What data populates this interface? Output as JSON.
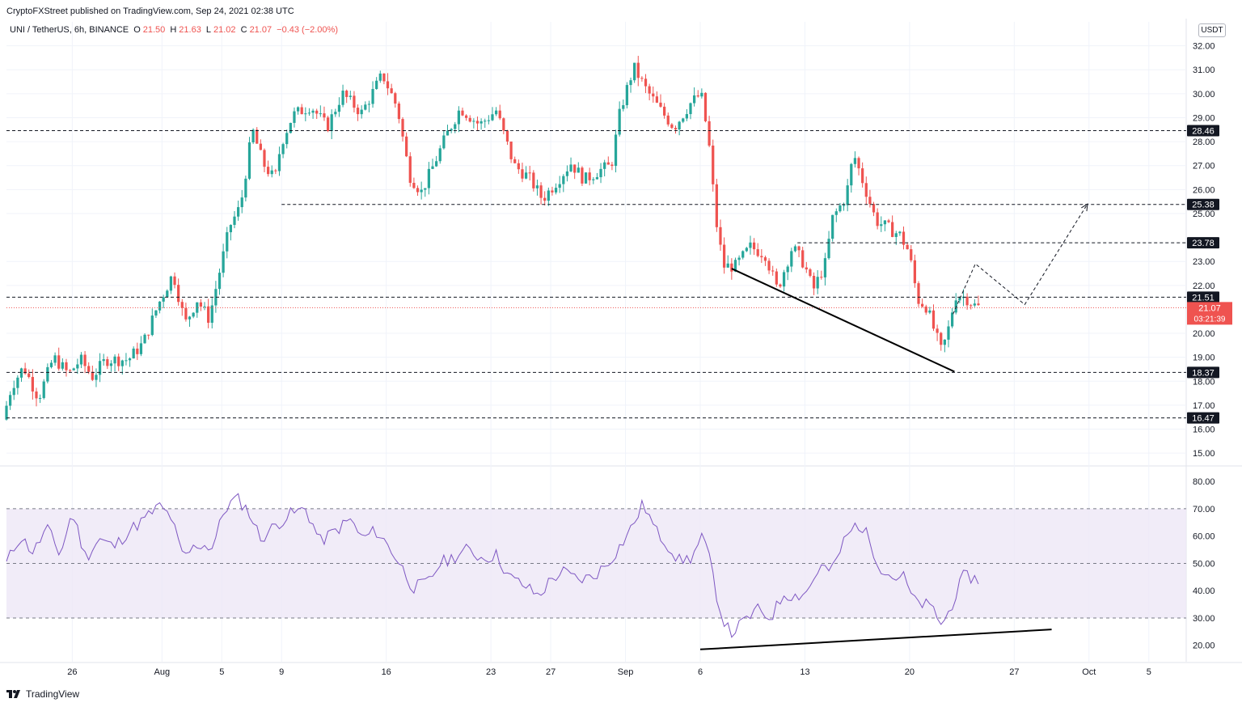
{
  "header": {
    "publisher_line": "CryptoFXStreet published on TradingView.com, Sep 24, 2021 02:38 UTC",
    "symbol": "UNI / TetherUS, 6h, BINANCE",
    "ohlc": {
      "o_label": "O",
      "o": "21.50",
      "h_label": "H",
      "h": "21.63",
      "l_label": "L",
      "l": "21.02",
      "c_label": "C",
      "c": "21.07",
      "change": "−0.43 (−2.00%)"
    },
    "currency": "USDT"
  },
  "footer": {
    "brand": "TradingView"
  },
  "colors": {
    "up": "#26a69a",
    "down": "#ef5350",
    "rsi": "#7e57c2",
    "rsi_band": "#ede7f6",
    "level_badge": "#131722",
    "last_price": "#ef5350"
  },
  "chart_data": [
    {
      "type": "candlestick",
      "timeframe": "6h",
      "x_ticks": [
        "26",
        "Aug",
        "5",
        "9",
        "16",
        "23",
        "27",
        "Sep",
        "6",
        "13",
        "20",
        "27",
        "Oct",
        "5"
      ],
      "x_tick_days": [
        26,
        32,
        36,
        40,
        47,
        54,
        58,
        63,
        68,
        75,
        82,
        89,
        94,
        98
      ],
      "x_range": [
        21.6,
        100.5
      ],
      "y_ticks": [
        "15.00",
        "16.00",
        "17.00",
        "18.00",
        "19.00",
        "20.00",
        "22.00",
        "23.00",
        "25.00",
        "26.00",
        "27.00",
        "28.00",
        "29.00",
        "30.00",
        "31.00",
        "32.00"
      ],
      "y_range": [
        14.6,
        33.0
      ],
      "key_levels": [
        {
          "label": "28.46",
          "value": 28.46,
          "from_day": 21.6
        },
        {
          "label": "25.38",
          "value": 25.38,
          "from_day": 40.0
        },
        {
          "label": "23.78",
          "value": 23.78,
          "from_day": 74.5
        },
        {
          "label": "21.51",
          "value": 21.51,
          "from_day": 21.6
        },
        {
          "label": "18.37",
          "value": 18.37,
          "from_day": 21.6
        },
        {
          "label": "16.47",
          "value": 16.47,
          "from_day": 21.6
        }
      ],
      "last_price": {
        "value": 21.07,
        "label": "21.07",
        "countdown": "03:21:39"
      },
      "trendline": [
        [
          70.1,
          22.7
        ],
        [
          85.0,
          18.4
        ]
      ],
      "projection": [
        [
          84.9,
          20.8
        ],
        [
          86.4,
          22.9
        ],
        [
          89.7,
          21.2
        ],
        [
          93.9,
          25.4
        ]
      ],
      "price_waypoints": [
        [
          21.6,
          16.4
        ],
        [
          22.2,
          17.8
        ],
        [
          23.0,
          18.6
        ],
        [
          24.0,
          17.3
        ],
        [
          25.0,
          19.0
        ],
        [
          26.0,
          18.3
        ],
        [
          26.8,
          18.9
        ],
        [
          27.6,
          18.2
        ],
        [
          28.5,
          18.9
        ],
        [
          30.0,
          18.9
        ],
        [
          31.0,
          19.6
        ],
        [
          32.0,
          21.2
        ],
        [
          33.0,
          22.5
        ],
        [
          33.8,
          20.4
        ],
        [
          34.6,
          21.4
        ],
        [
          35.4,
          20.6
        ],
        [
          36.0,
          22.3
        ],
        [
          36.8,
          24.5
        ],
        [
          37.5,
          25.3
        ],
        [
          38.3,
          28.5
        ],
        [
          39.0,
          27.1
        ],
        [
          39.8,
          26.4
        ],
        [
          40.2,
          27.9
        ],
        [
          41.0,
          29.1
        ],
        [
          42.2,
          29.5
        ],
        [
          43.3,
          28.6
        ],
        [
          44.3,
          30.0
        ],
        [
          45.6,
          29.2
        ],
        [
          47.0,
          30.8
        ],
        [
          48.0,
          29.4
        ],
        [
          48.8,
          26.6
        ],
        [
          49.6,
          25.9
        ],
        [
          50.4,
          27.0
        ],
        [
          51.3,
          28.3
        ],
        [
          52.2,
          29.4
        ],
        [
          53.5,
          28.7
        ],
        [
          54.6,
          29.3
        ],
        [
          55.8,
          27.0
        ],
        [
          56.8,
          26.5
        ],
        [
          57.7,
          25.6
        ],
        [
          58.6,
          26.3
        ],
        [
          59.6,
          27.1
        ],
        [
          60.5,
          26.4
        ],
        [
          61.5,
          26.8
        ],
        [
          62.3,
          27.0
        ],
        [
          62.9,
          29.3
        ],
        [
          63.8,
          31.1
        ],
        [
          64.6,
          30.2
        ],
        [
          65.6,
          29.3
        ],
        [
          66.5,
          28.6
        ],
        [
          67.6,
          29.6
        ],
        [
          68.3,
          30.0
        ],
        [
          68.8,
          28.1
        ],
        [
          69.3,
          24.7
        ],
        [
          69.8,
          22.8
        ],
        [
          70.6,
          22.8
        ],
        [
          71.6,
          23.6
        ],
        [
          72.6,
          23.3
        ],
        [
          73.4,
          21.8
        ],
        [
          74.4,
          23.6
        ],
        [
          75.2,
          22.9
        ],
        [
          75.8,
          21.8
        ],
        [
          76.6,
          22.9
        ],
        [
          77.1,
          24.8
        ],
        [
          78.0,
          25.7
        ],
        [
          78.5,
          27.5
        ],
        [
          79.2,
          26.2
        ],
        [
          80.0,
          24.7
        ],
        [
          80.8,
          24.4
        ],
        [
          81.6,
          24.1
        ],
        [
          82.2,
          23.4
        ],
        [
          82.8,
          21.4
        ],
        [
          83.4,
          21.1
        ],
        [
          83.8,
          20.3
        ],
        [
          84.4,
          19.2
        ],
        [
          84.9,
          20.3
        ],
        [
          85.3,
          21.6
        ],
        [
          86.0,
          21.5
        ],
        [
          86.7,
          21.1
        ]
      ]
    },
    {
      "type": "line",
      "indicator": "RSI",
      "y_ticks": [
        "20.00",
        "30.00",
        "40.00",
        "50.00",
        "60.00",
        "70.00",
        "80.00"
      ],
      "y_range": [
        14.0,
        83.6
      ],
      "band": [
        30,
        70
      ],
      "midline": 50,
      "trendline": [
        [
          68.0,
          18.5
        ],
        [
          91.5,
          25.8
        ]
      ],
      "series": [
        [
          21.6,
          50
        ],
        [
          22.5,
          60
        ],
        [
          23.4,
          54
        ],
        [
          24.3,
          63
        ],
        [
          25.2,
          53
        ],
        [
          26.0,
          69
        ],
        [
          26.9,
          52
        ],
        [
          27.8,
          59
        ],
        [
          28.8,
          56
        ],
        [
          29.8,
          62
        ],
        [
          30.8,
          66
        ],
        [
          31.8,
          71
        ],
        [
          32.6,
          67
        ],
        [
          33.4,
          52
        ],
        [
          34.4,
          57
        ],
        [
          35.4,
          56
        ],
        [
          36.2,
          70
        ],
        [
          37.0,
          74
        ],
        [
          37.8,
          69
        ],
        [
          38.6,
          59
        ],
        [
          39.6,
          64
        ],
        [
          40.6,
          68
        ],
        [
          41.6,
          70
        ],
        [
          42.6,
          58
        ],
        [
          43.6,
          62
        ],
        [
          44.6,
          66
        ],
        [
          45.4,
          59
        ],
        [
          46.3,
          62
        ],
        [
          47.2,
          56
        ],
        [
          48.0,
          49
        ],
        [
          48.8,
          41
        ],
        [
          49.8,
          43
        ],
        [
          50.6,
          50
        ],
        [
          51.4,
          52
        ],
        [
          52.4,
          55
        ],
        [
          53.4,
          52
        ],
        [
          54.4,
          53
        ],
        [
          55.2,
          45
        ],
        [
          56.2,
          42
        ],
        [
          57.2,
          38
        ],
        [
          58.0,
          44
        ],
        [
          58.8,
          47
        ],
        [
          59.8,
          44
        ],
        [
          60.8,
          45
        ],
        [
          61.8,
          50
        ],
        [
          62.6,
          56
        ],
        [
          63.4,
          63
        ],
        [
          64.2,
          72
        ],
        [
          65.0,
          62
        ],
        [
          65.8,
          57
        ],
        [
          66.6,
          51
        ],
        [
          67.4,
          52
        ],
        [
          68.2,
          60
        ],
        [
          68.8,
          47
        ],
        [
          69.3,
          33
        ],
        [
          70.0,
          24
        ],
        [
          70.8,
          28
        ],
        [
          71.8,
          33
        ],
        [
          72.7,
          30
        ],
        [
          73.6,
          39
        ],
        [
          74.4,
          38
        ],
        [
          75.2,
          40
        ],
        [
          76.0,
          49
        ],
        [
          76.8,
          47
        ],
        [
          77.6,
          58
        ],
        [
          78.5,
          65
        ],
        [
          79.2,
          60
        ],
        [
          80.0,
          49
        ],
        [
          80.8,
          45
        ],
        [
          81.6,
          45
        ],
        [
          82.3,
          36
        ],
        [
          83.0,
          35
        ],
        [
          83.6,
          33
        ],
        [
          84.2,
          27
        ],
        [
          84.9,
          36
        ],
        [
          85.6,
          45
        ],
        [
          86.2,
          45
        ],
        [
          86.7,
          43
        ]
      ]
    }
  ]
}
